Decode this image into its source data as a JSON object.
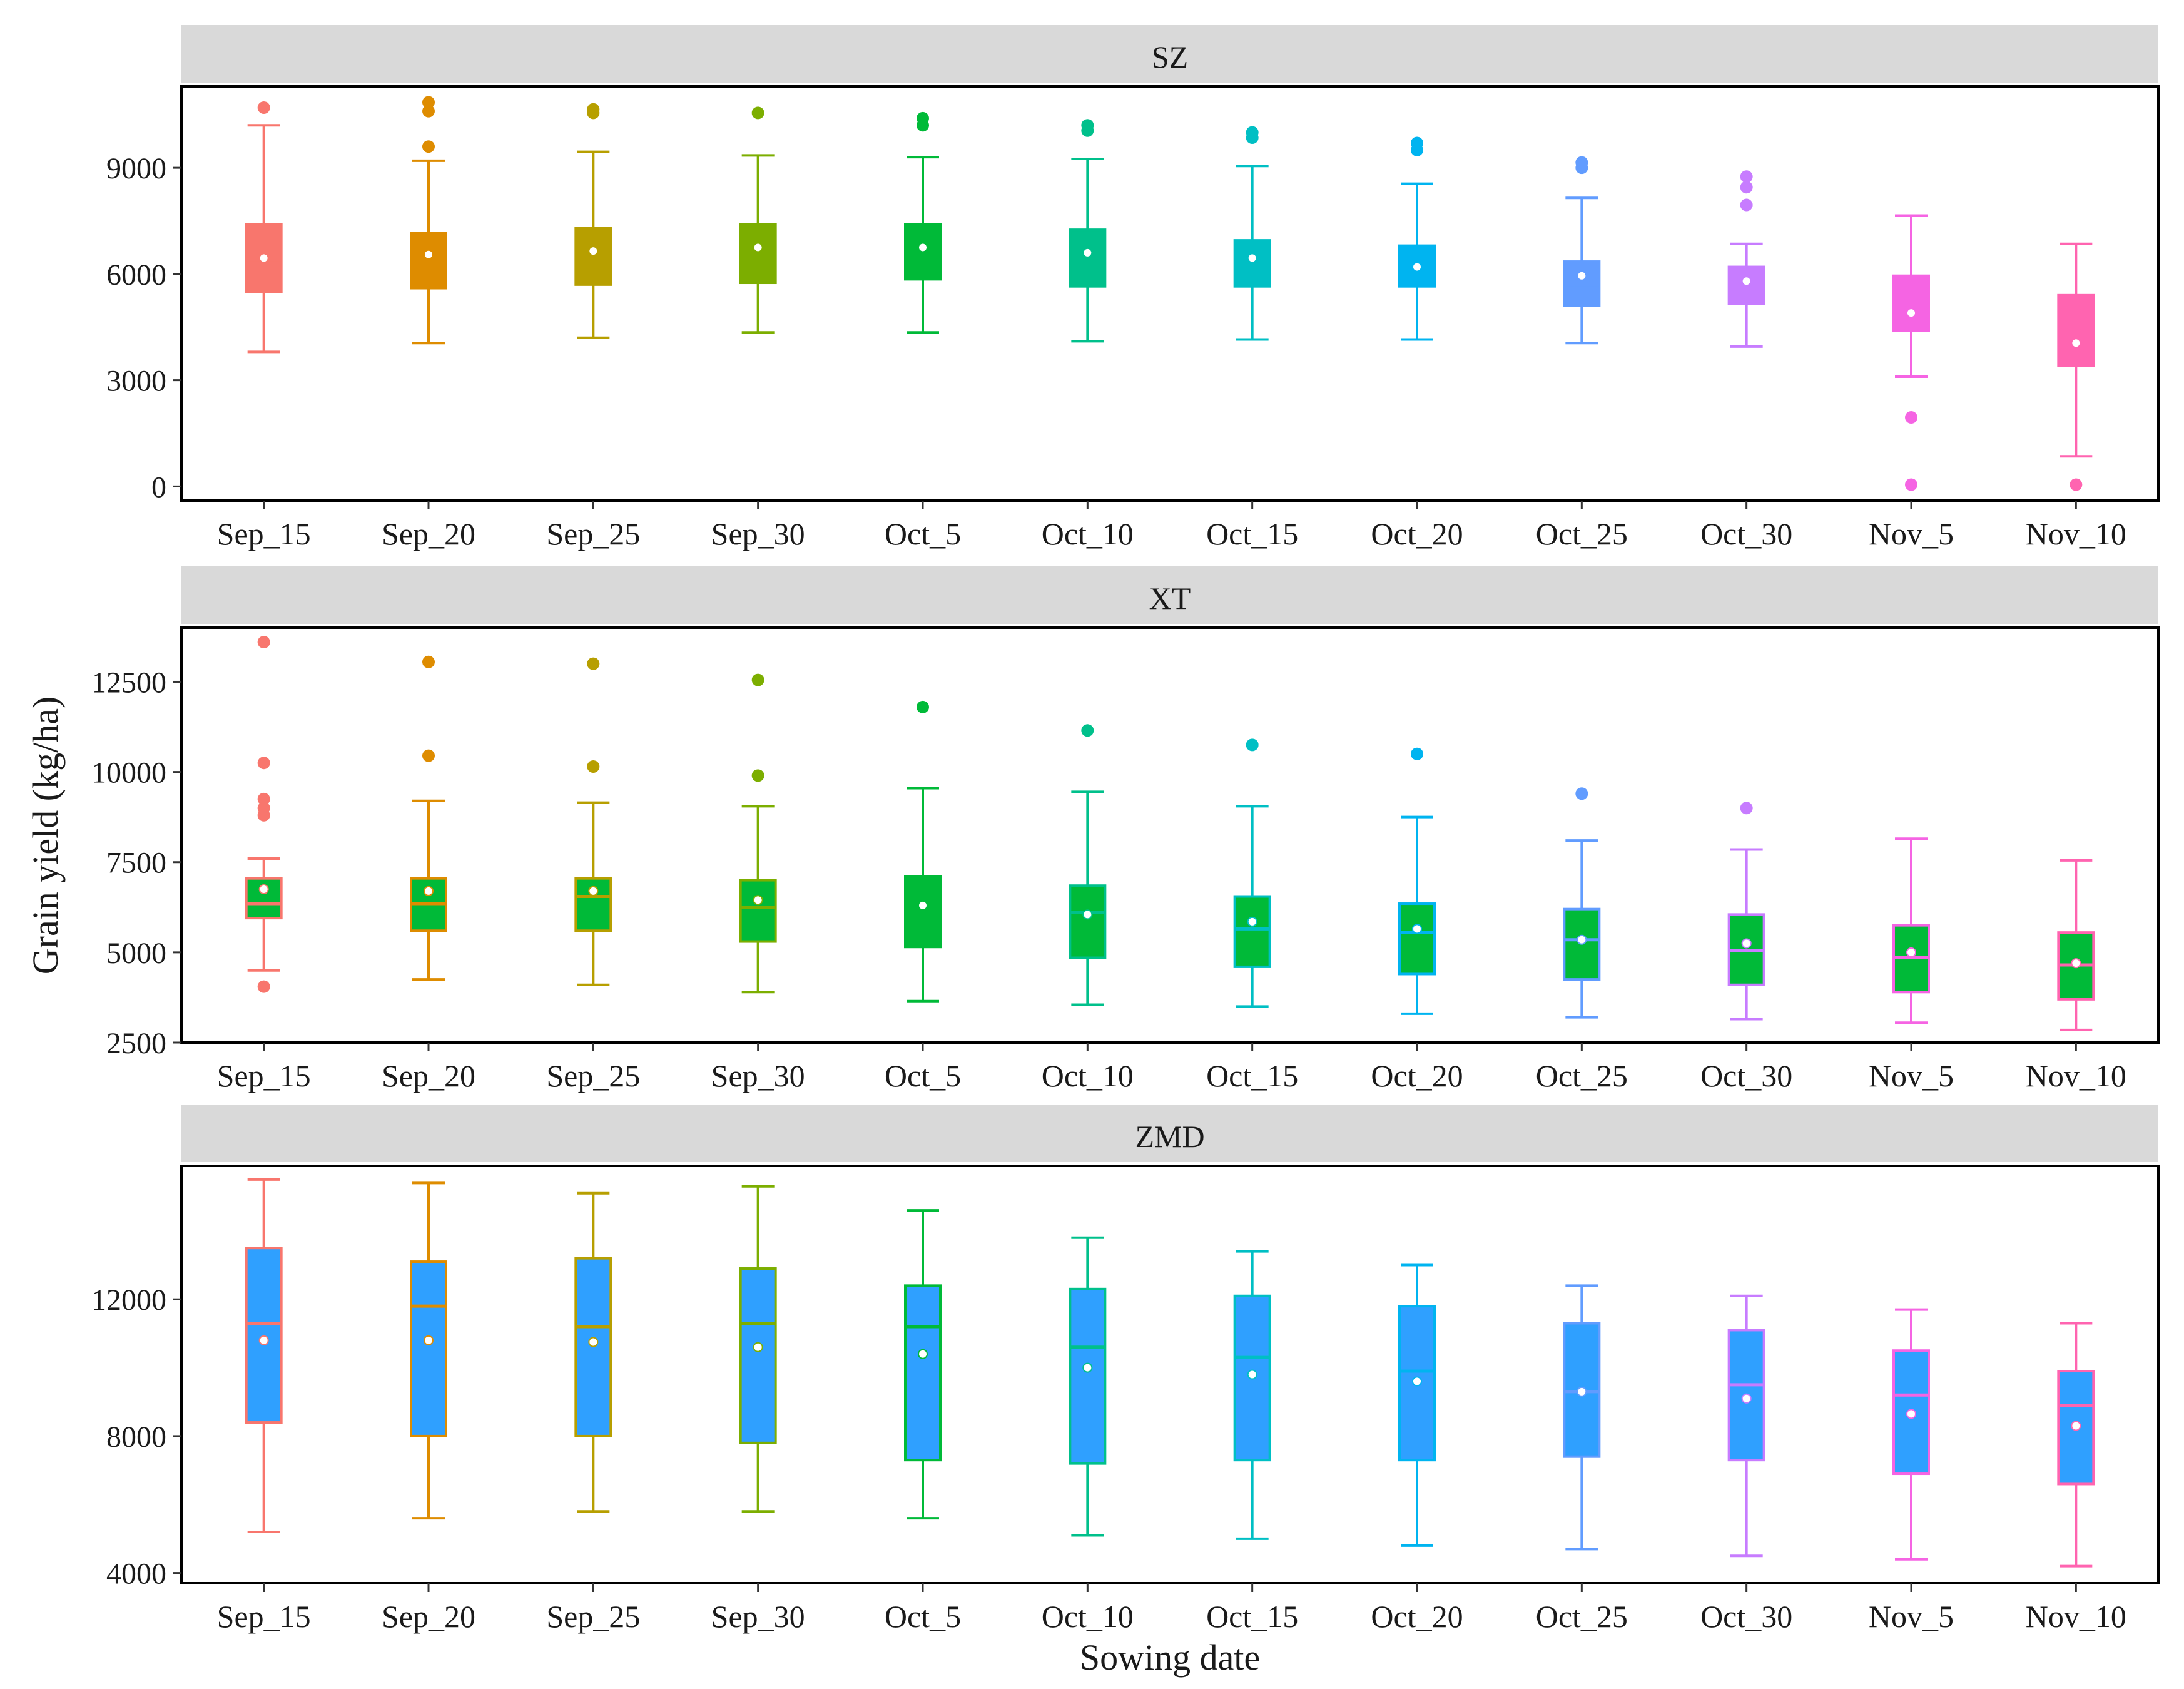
{
  "chart_data": {
    "type": "boxplot",
    "xlabel": "Sowing date",
    "ylabel": "Grain yield (kg/ha)",
    "categories": [
      "Sep_15",
      "Sep_20",
      "Sep_25",
      "Sep_30",
      "Oct_5",
      "Oct_10",
      "Oct_15",
      "Oct_20",
      "Oct_25",
      "Oct_30",
      "Nov_5",
      "Nov_10"
    ],
    "colors": [
      "#F8766D",
      "#DE8C00",
      "#B79F00",
      "#7CAE00",
      "#00BA38",
      "#00C08B",
      "#00BFC4",
      "#00B4F0",
      "#619CFF",
      "#C77CFF",
      "#F564E3",
      "#FF64B0"
    ],
    "panels": [
      {
        "label": "SZ",
        "ylim": [
          -400,
          11300
        ],
        "yticks": [
          0,
          3000,
          6000,
          9000
        ],
        "ytick_labels": [
          "0",
          "3000",
          "6000",
          "9000"
        ],
        "fill_mode": "category",
        "boxes": [
          {
            "min": 3800,
            "q1": 5500,
            "median": 6400,
            "q3": 7400,
            "max": 10200,
            "mean": 6450,
            "outliers": [
              10700
            ]
          },
          {
            "min": 4050,
            "q1": 5600,
            "median": 6500,
            "q3": 7150,
            "max": 9200,
            "mean": 6550,
            "outliers": [
              9600,
              10600,
              10850
            ]
          },
          {
            "min": 4200,
            "q1": 5700,
            "median": 6300,
            "q3": 7300,
            "max": 9450,
            "mean": 6650,
            "outliers": [
              10550,
              10650
            ]
          },
          {
            "min": 4350,
            "q1": 5750,
            "median": 6400,
            "q3": 7400,
            "max": 9350,
            "mean": 6750,
            "outliers": [
              10550
            ]
          },
          {
            "min": 4350,
            "q1": 5850,
            "median": 6300,
            "q3": 7400,
            "max": 9300,
            "mean": 6750,
            "outliers": [
              10200,
              10400
            ]
          },
          {
            "min": 4100,
            "q1": 5650,
            "median": 6300,
            "q3": 7250,
            "max": 9250,
            "mean": 6600,
            "outliers": [
              10050,
              10200
            ]
          },
          {
            "min": 4150,
            "q1": 5650,
            "median": 6200,
            "q3": 6950,
            "max": 9050,
            "mean": 6450,
            "outliers": [
              9850,
              10000
            ]
          },
          {
            "min": 4150,
            "q1": 5650,
            "median": 5950,
            "q3": 6800,
            "max": 8550,
            "mean": 6200,
            "outliers": [
              9500,
              9700
            ]
          },
          {
            "min": 4050,
            "q1": 5100,
            "median": 5700,
            "q3": 6350,
            "max": 8150,
            "mean": 5950,
            "outliers": [
              9000,
              9150
            ]
          },
          {
            "min": 3950,
            "q1": 5150,
            "median": 5500,
            "q3": 6200,
            "max": 6850,
            "mean": 5800,
            "outliers": [
              7950,
              8450,
              8750
            ]
          },
          {
            "min": 3100,
            "q1": 4400,
            "median": 5200,
            "q3": 5950,
            "max": 7650,
            "mean": 4900,
            "outliers": [
              1950,
              50
            ]
          },
          {
            "min": 850,
            "q1": 3400,
            "median": 4800,
            "q3": 5400,
            "max": 6850,
            "mean": 4050,
            "outliers": [
              50
            ]
          }
        ]
      },
      {
        "label": "XT",
        "ylim": [
          2500,
          14000
        ],
        "yticks": [
          2500,
          5000,
          7500,
          10000,
          12500
        ],
        "ytick_labels": [
          "2500",
          "5000",
          "7500",
          "10000",
          "12500"
        ],
        "fill_mode": "single",
        "fill_color": "#00BA38",
        "boxes": [
          {
            "min": 4500,
            "q1": 5950,
            "median": 6350,
            "q3": 7050,
            "max": 7600,
            "mean": 6750,
            "outliers": [
              4050,
              8800,
              9000,
              9250,
              10250,
              13600
            ]
          },
          {
            "min": 4250,
            "q1": 5600,
            "median": 6350,
            "q3": 7050,
            "max": 9200,
            "mean": 6700,
            "outliers": [
              10450,
              13050
            ]
          },
          {
            "min": 4100,
            "q1": 5600,
            "median": 6550,
            "q3": 7050,
            "max": 9150,
            "mean": 6700,
            "outliers": [
              10150,
              13000
            ]
          },
          {
            "min": 3900,
            "q1": 5300,
            "median": 6250,
            "q3": 7000,
            "max": 9050,
            "mean": 6450,
            "outliers": [
              9900,
              12550
            ]
          },
          {
            "min": 3650,
            "q1": 5150,
            "median": 6350,
            "q3": 7100,
            "max": 9550,
            "mean": 6300,
            "outliers": [
              11800
            ]
          },
          {
            "min": 3550,
            "q1": 4850,
            "median": 6100,
            "q3": 6850,
            "max": 9450,
            "mean": 6050,
            "outliers": [
              11150
            ]
          },
          {
            "min": 3500,
            "q1": 4600,
            "median": 5650,
            "q3": 6550,
            "max": 9050,
            "mean": 5850,
            "outliers": [
              10750
            ]
          },
          {
            "min": 3300,
            "q1": 4400,
            "median": 5550,
            "q3": 6350,
            "max": 8750,
            "mean": 5650,
            "outliers": [
              10500
            ]
          },
          {
            "min": 3200,
            "q1": 4250,
            "median": 5350,
            "q3": 6200,
            "max": 8100,
            "mean": 5350,
            "outliers": [
              9400
            ]
          },
          {
            "min": 3150,
            "q1": 4100,
            "median": 5050,
            "q3": 6050,
            "max": 7850,
            "mean": 5250,
            "outliers": [
              9000
            ]
          },
          {
            "min": 3050,
            "q1": 3900,
            "median": 4850,
            "q3": 5750,
            "max": 8150,
            "mean": 5000,
            "outliers": []
          },
          {
            "min": 2850,
            "q1": 3700,
            "median": 4650,
            "q3": 5550,
            "max": 7550,
            "mean": 4700,
            "outliers": []
          }
        ]
      },
      {
        "label": "ZMD",
        "ylim": [
          3700,
          15900
        ],
        "yticks": [
          4000,
          8000,
          12000
        ],
        "ytick_labels": [
          "4000",
          "8000",
          "12000"
        ],
        "fill_mode": "single",
        "fill_color": "#2FA0FF",
        "boxes": [
          {
            "min": 5200,
            "q1": 8400,
            "median": 11300,
            "q3": 13500,
            "max": 15500,
            "mean": 10800,
            "outliers": []
          },
          {
            "min": 5600,
            "q1": 8000,
            "median": 11800,
            "q3": 13100,
            "max": 15400,
            "mean": 10800,
            "outliers": []
          },
          {
            "min": 5800,
            "q1": 8000,
            "median": 11200,
            "q3": 13200,
            "max": 15100,
            "mean": 10750,
            "outliers": []
          },
          {
            "min": 5800,
            "q1": 7800,
            "median": 11300,
            "q3": 12900,
            "max": 15300,
            "mean": 10600,
            "outliers": []
          },
          {
            "min": 5600,
            "q1": 7300,
            "median": 11200,
            "q3": 12400,
            "max": 14600,
            "mean": 10400,
            "outliers": []
          },
          {
            "min": 5100,
            "q1": 7200,
            "median": 10600,
            "q3": 12300,
            "max": 13800,
            "mean": 10000,
            "outliers": []
          },
          {
            "min": 5000,
            "q1": 7300,
            "median": 10300,
            "q3": 12100,
            "max": 13400,
            "mean": 9800,
            "outliers": []
          },
          {
            "min": 4800,
            "q1": 7300,
            "median": 9900,
            "q3": 11800,
            "max": 13000,
            "mean": 9600,
            "outliers": []
          },
          {
            "min": 4700,
            "q1": 7400,
            "median": 9300,
            "q3": 11300,
            "max": 12400,
            "mean": 9300,
            "outliers": []
          },
          {
            "min": 4500,
            "q1": 7300,
            "median": 9500,
            "q3": 11100,
            "max": 12100,
            "mean": 9100,
            "outliers": []
          },
          {
            "min": 4400,
            "q1": 6900,
            "median": 9200,
            "q3": 10500,
            "max": 11700,
            "mean": 8650,
            "outliers": []
          },
          {
            "min": 4200,
            "q1": 6600,
            "median": 8900,
            "q3": 9900,
            "max": 11300,
            "mean": 8300,
            "outliers": []
          }
        ]
      }
    ]
  }
}
